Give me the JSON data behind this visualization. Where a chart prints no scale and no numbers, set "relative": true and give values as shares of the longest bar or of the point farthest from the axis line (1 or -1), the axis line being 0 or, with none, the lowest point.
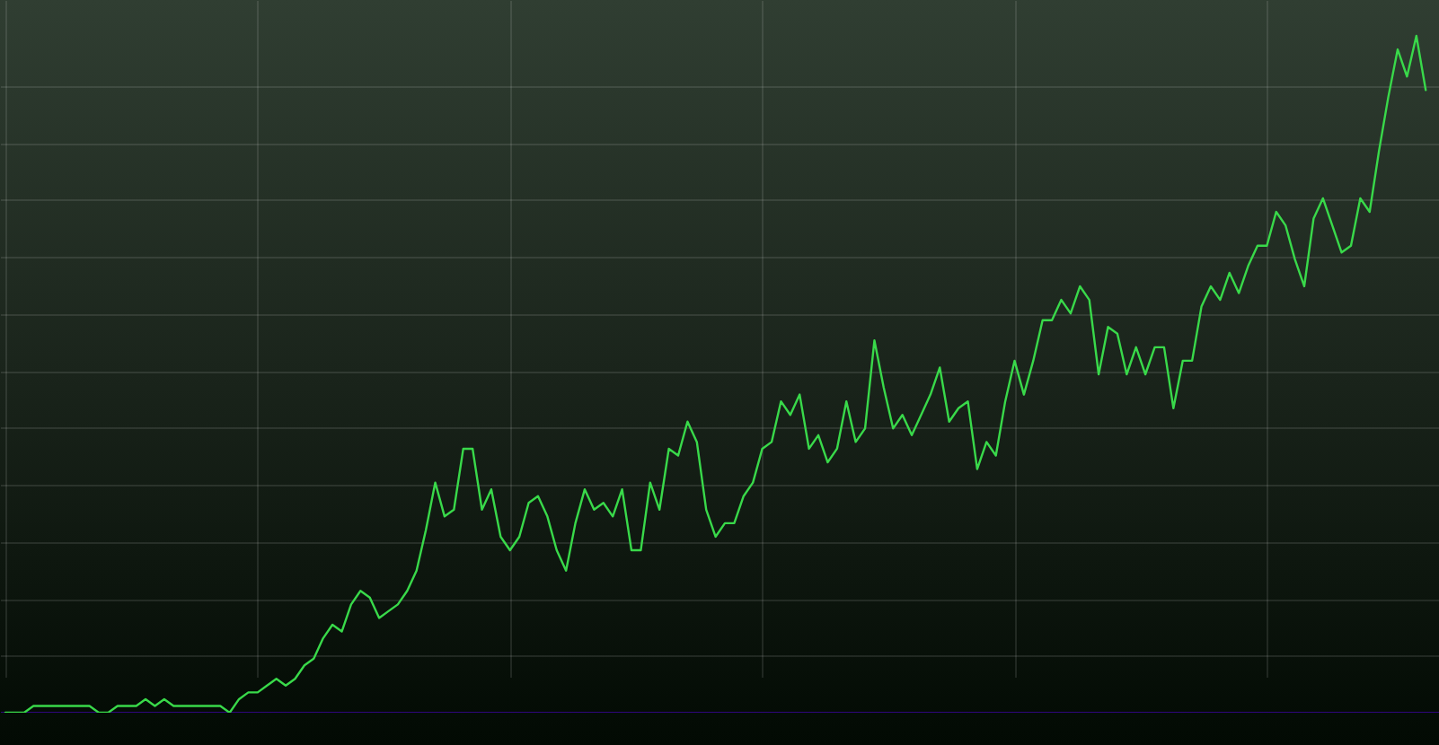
{
  "chart_data": {
    "type": "line",
    "relative": true,
    "grid": true,
    "categories": [
      null,
      null,
      null,
      null,
      null,
      null,
      null,
      null,
      null,
      null,
      null,
      null,
      null,
      null,
      null,
      null,
      null,
      null,
      null,
      null,
      null,
      null,
      null,
      null,
      null,
      null,
      null,
      null,
      null,
      null,
      null,
      null,
      null,
      null,
      null,
      null,
      null,
      null,
      null,
      null,
      null,
      null,
      null,
      null,
      null,
      null,
      null,
      null,
      null,
      null,
      null,
      null,
      null,
      null,
      null,
      null,
      null,
      null,
      null,
      null,
      null,
      null,
      null,
      null,
      null,
      null,
      null,
      null,
      null,
      null,
      null,
      null,
      null,
      null,
      null,
      null,
      null,
      null,
      null,
      null,
      null,
      null,
      null,
      null,
      null,
      null,
      null,
      null,
      null,
      null,
      null,
      null,
      null,
      null,
      null,
      null,
      null,
      null,
      null,
      null,
      null,
      null,
      null,
      null,
      null,
      null,
      null,
      null,
      null,
      null,
      null,
      null,
      null,
      null,
      null,
      null,
      null,
      null,
      null,
      null,
      null,
      null,
      null,
      null,
      null,
      null,
      null,
      null,
      null,
      null,
      null,
      null,
      null,
      null,
      null,
      null,
      null,
      null,
      null,
      null,
      null,
      null,
      null,
      null,
      null,
      null,
      null,
      null,
      null,
      null,
      null,
      null,
      null
    ],
    "series": [
      {
        "color": "#39d94a",
        "values": [
          0,
          0,
          0,
          0.01,
          0.01,
          0.01,
          0.01,
          0.01,
          0.01,
          0.01,
          0,
          0,
          0.01,
          0.01,
          0.01,
          0.02,
          0.01,
          0.02,
          0.01,
          0.01,
          0.01,
          0.01,
          0.01,
          0.01,
          0,
          0.02,
          0.03,
          0.03,
          0.04,
          0.05,
          0.04,
          0.05,
          0.07,
          0.08,
          0.11,
          0.13,
          0.12,
          0.16,
          0.18,
          0.17,
          0.14,
          0.15,
          0.16,
          0.18,
          0.21,
          0.27,
          0.34,
          0.29,
          0.3,
          0.39,
          0.39,
          0.3,
          0.33,
          0.26,
          0.24,
          0.26,
          0.31,
          0.32,
          0.29,
          0.24,
          0.21,
          0.28,
          0.33,
          0.3,
          0.31,
          0.29,
          0.33,
          0.24,
          0.24,
          0.34,
          0.3,
          0.39,
          0.38,
          0.43,
          0.4,
          0.3,
          0.26,
          0.28,
          0.28,
          0.32,
          0.34,
          0.39,
          0.4,
          0.46,
          0.44,
          0.47,
          0.39,
          0.41,
          0.37,
          0.39,
          0.46,
          0.4,
          0.42,
          0.55,
          0.48,
          0.42,
          0.44,
          0.41,
          0.44,
          0.47,
          0.51,
          0.43,
          0.45,
          0.46,
          0.36,
          0.4,
          0.38,
          0.46,
          0.52,
          0.47,
          0.52,
          0.58,
          0.58,
          0.61,
          0.59,
          0.63,
          0.61,
          0.5,
          0.57,
          0.56,
          0.5,
          0.54,
          0.5,
          0.54,
          0.54,
          0.45,
          0.52,
          0.52,
          0.6,
          0.63,
          0.61,
          0.65,
          0.62,
          0.66,
          0.69,
          0.69,
          0.74,
          0.72,
          0.67,
          0.63,
          0.73,
          0.76,
          0.72,
          0.68,
          0.69,
          0.76,
          0.74,
          0.83,
          0.91,
          0.98,
          0.94,
          1,
          0.92
        ]
      }
    ]
  }
}
